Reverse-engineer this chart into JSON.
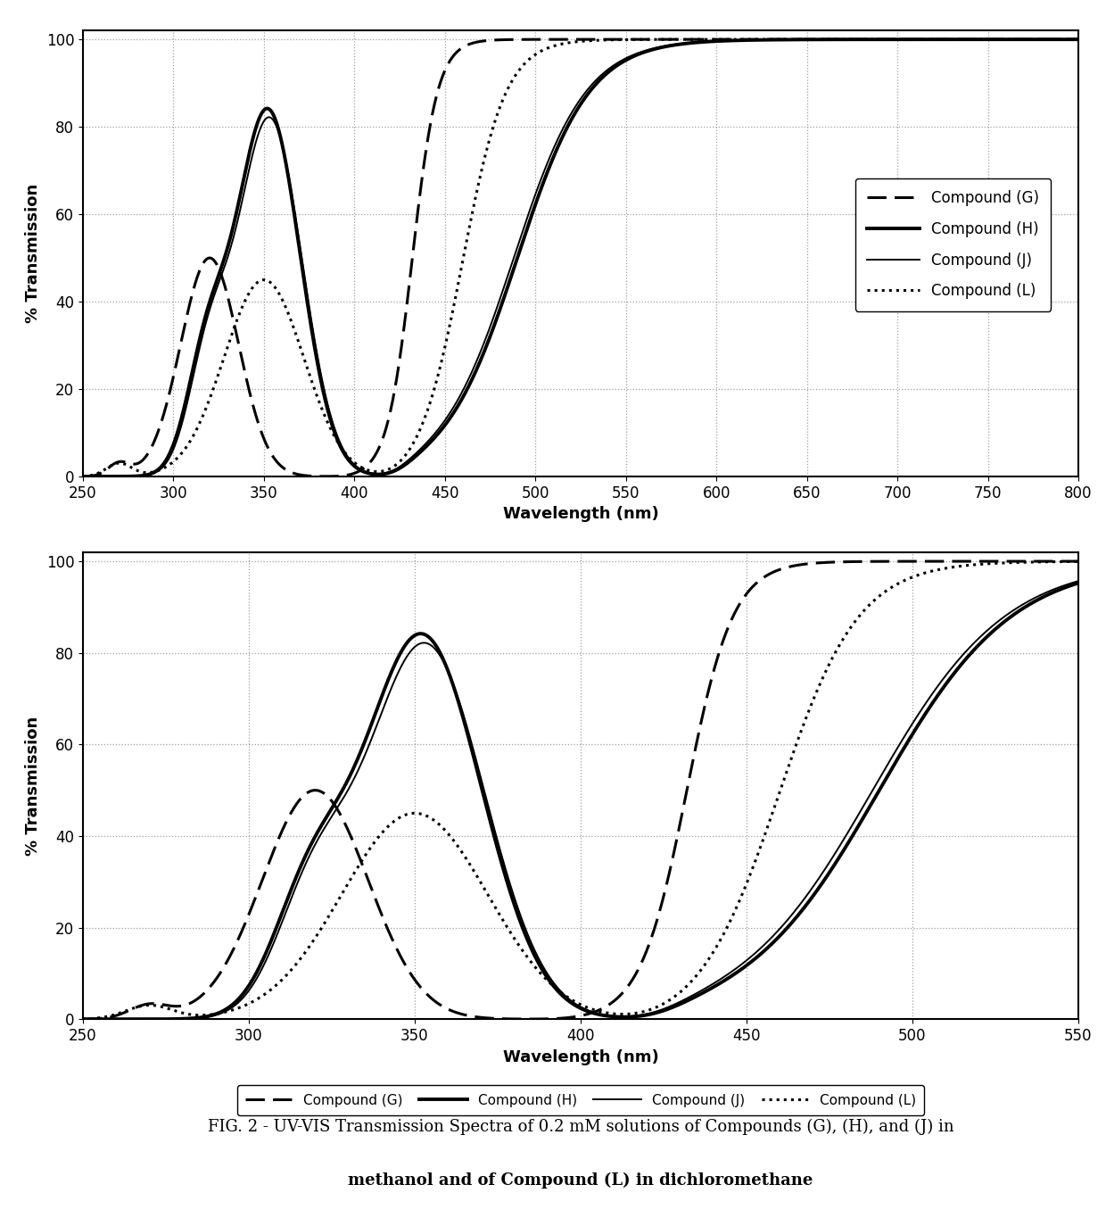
{
  "plot1": {
    "xmin": 250,
    "xmax": 800,
    "xticks": [
      250,
      300,
      350,
      400,
      450,
      500,
      550,
      600,
      650,
      700,
      750,
      800
    ],
    "yticks": [
      0,
      20,
      40,
      60,
      80,
      100
    ],
    "xlabel": "Wavelength (nm)",
    "ylabel": "% Transmission",
    "ylim": [
      0,
      102
    ]
  },
  "plot2": {
    "xmin": 250,
    "xmax": 550,
    "xticks": [
      250,
      300,
      350,
      400,
      450,
      500,
      550
    ],
    "yticks": [
      0,
      20,
      40,
      60,
      80,
      100
    ],
    "xlabel": "Wavelength (nm)",
    "ylabel": "% Transmission",
    "ylim": [
      0,
      102
    ]
  },
  "legend1": {
    "entries": [
      "Compound (G)",
      "Compound (H)",
      "Compound (J)",
      "Compound (L)"
    ]
  },
  "legend2": {
    "entries": [
      "Compound (G)",
      "Compound (H)",
      "Compound (J)",
      "Compound (L)"
    ]
  },
  "caption_line1": "FIG. 2 - UV-VIS Transmission Spectra of 0.2 mM solutions of Compounds (G), (H), and (J) in",
  "caption_line2": "methanol and of Compound (L) in dichloromethane",
  "line_color": "#000000",
  "background_color": "#ffffff",
  "grid_color": "#888888"
}
